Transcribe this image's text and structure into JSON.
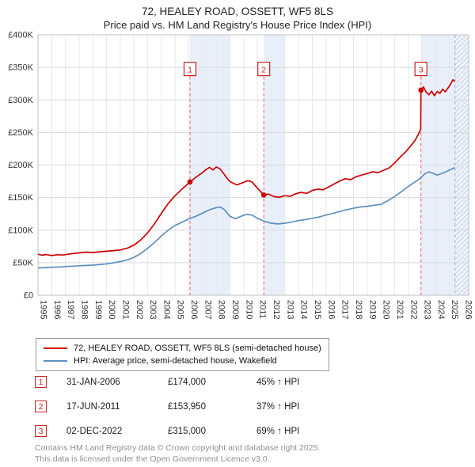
{
  "title": "72, HEALEY ROAD, OSSETT, WF5 8LS",
  "subtitle": "Price paid vs. HM Land Registry's House Price Index (HPI)",
  "colors": {
    "accent_red": "#cc2222",
    "property_line": "#cc0000",
    "hpi_line": "#5f8fc0",
    "band_fill": "#e9effa",
    "sale_dash": "#e06666",
    "grid_major": "#d9d9d9",
    "grid_minor": "#e8e8e8",
    "plot_border": "#c0c0c0",
    "hatch_stroke": "#c7d3e3",
    "hatch_bg": "#f0f4fa",
    "hpi_end_dash": "#8fb2d6"
  },
  "chart_data": {
    "type": "line",
    "title": "Price paid vs. HM Land Registry's House Price Index (HPI)",
    "xlabel": "",
    "ylabel": "",
    "legend_position": "bottom",
    "grid": true,
    "x_domain": [
      1995,
      2026.4
    ],
    "y_domain": [
      0,
      400000
    ],
    "x_ticks": [
      1995,
      1996,
      1997,
      1998,
      1999,
      2000,
      2001,
      2002,
      2003,
      2004,
      2005,
      2006,
      2007,
      2008,
      2009,
      2010,
      2011,
      2012,
      2013,
      2014,
      2015,
      2016,
      2017,
      2018,
      2019,
      2020,
      2021,
      2022,
      2023,
      2024,
      2025,
      2026
    ],
    "y_ticks": [
      {
        "v": 0,
        "label": "£0"
      },
      {
        "v": 50000,
        "label": "£50K"
      },
      {
        "v": 100000,
        "label": "£100K"
      },
      {
        "v": 150000,
        "label": "£150K"
      },
      {
        "v": 200000,
        "label": "£200K"
      },
      {
        "v": 250000,
        "label": "£250K"
      },
      {
        "v": 300000,
        "label": "£300K"
      },
      {
        "v": 350000,
        "label": "£350K"
      },
      {
        "v": 400000,
        "label": "£400K"
      }
    ],
    "label_y": 347000,
    "bands": [
      [
        2006.08,
        2009.0
      ],
      [
        2011.46,
        2013.0
      ],
      [
        2022.92,
        2025.4
      ]
    ],
    "hatch_band": [
      2025.4,
      2026.4
    ],
    "hpi_end_x": 2025.4,
    "series": [
      {
        "name": "72, HEALEY ROAD, OSSETT, WF5 8LS (semi-detached house)",
        "color": "#cc0000",
        "points": [
          [
            1995.0,
            63000
          ],
          [
            1995.3,
            61500
          ],
          [
            1995.6,
            62500
          ],
          [
            1996.0,
            61000
          ],
          [
            1996.4,
            62200
          ],
          [
            1996.8,
            61800
          ],
          [
            1997.2,
            63000
          ],
          [
            1997.6,
            64200
          ],
          [
            1998.0,
            65000
          ],
          [
            1998.5,
            66300
          ],
          [
            1999.0,
            65600
          ],
          [
            1999.5,
            66800
          ],
          [
            2000.0,
            67600
          ],
          [
            2000.5,
            68600
          ],
          [
            2001.0,
            69600
          ],
          [
            2001.5,
            72200
          ],
          [
            2002.0,
            77000
          ],
          [
            2002.5,
            85000
          ],
          [
            2003.0,
            96000
          ],
          [
            2003.5,
            110000
          ],
          [
            2004.0,
            126000
          ],
          [
            2004.5,
            141000
          ],
          [
            2005.0,
            153000
          ],
          [
            2005.5,
            163000
          ],
          [
            2006.08,
            174000
          ],
          [
            2006.5,
            181000
          ],
          [
            2007.0,
            188500
          ],
          [
            2007.25,
            193000
          ],
          [
            2007.5,
            196500
          ],
          [
            2007.75,
            192500
          ],
          [
            2008.0,
            197000
          ],
          [
            2008.25,
            194500
          ],
          [
            2008.5,
            188000
          ],
          [
            2008.75,
            180500
          ],
          [
            2009.0,
            174500
          ],
          [
            2009.5,
            169500
          ],
          [
            2010.0,
            173500
          ],
          [
            2010.3,
            176000
          ],
          [
            2010.6,
            174000
          ],
          [
            2011.0,
            164500
          ],
          [
            2011.46,
            153950
          ],
          [
            2011.8,
            155500
          ],
          [
            2012.2,
            151500
          ],
          [
            2012.6,
            150500
          ],
          [
            2013.0,
            153000
          ],
          [
            2013.4,
            152000
          ],
          [
            2013.8,
            156000
          ],
          [
            2014.2,
            158000
          ],
          [
            2014.6,
            156500
          ],
          [
            2015.0,
            161000
          ],
          [
            2015.4,
            163000
          ],
          [
            2015.8,
            162000
          ],
          [
            2016.2,
            166500
          ],
          [
            2016.6,
            171000
          ],
          [
            2017.0,
            175500
          ],
          [
            2017.4,
            179000
          ],
          [
            2017.8,
            177500
          ],
          [
            2018.2,
            182000
          ],
          [
            2018.6,
            184500
          ],
          [
            2019.0,
            187000
          ],
          [
            2019.4,
            189500
          ],
          [
            2019.8,
            188500
          ],
          [
            2020.2,
            192000
          ],
          [
            2020.6,
            195500
          ],
          [
            2021.0,
            203000
          ],
          [
            2021.4,
            212000
          ],
          [
            2021.8,
            220000
          ],
          [
            2022.2,
            230000
          ],
          [
            2022.5,
            238000
          ],
          [
            2022.75,
            248000
          ],
          [
            2022.9,
            255000
          ],
          [
            2022.92,
            315000
          ],
          [
            2023.1,
            320000
          ],
          [
            2023.3,
            312000
          ],
          [
            2023.5,
            308000
          ],
          [
            2023.7,
            313500
          ],
          [
            2023.9,
            306500
          ],
          [
            2024.1,
            313000
          ],
          [
            2024.3,
            310000
          ],
          [
            2024.5,
            316500
          ],
          [
            2024.7,
            312500
          ],
          [
            2024.9,
            318500
          ],
          [
            2025.1,
            325000
          ],
          [
            2025.25,
            331000
          ],
          [
            2025.4,
            328500
          ]
        ]
      },
      {
        "name": "HPI: Average price, semi-detached house, Wakefield",
        "color": "#5f8fc0",
        "points": [
          [
            1995.0,
            42000
          ],
          [
            1995.5,
            42500
          ],
          [
            1996.0,
            43000
          ],
          [
            1996.5,
            43400
          ],
          [
            1997.0,
            44000
          ],
          [
            1997.5,
            44600
          ],
          [
            1998.0,
            45200
          ],
          [
            1998.5,
            45700
          ],
          [
            1999.0,
            46200
          ],
          [
            1999.5,
            47200
          ],
          [
            2000.0,
            48200
          ],
          [
            2000.5,
            49700
          ],
          [
            2001.0,
            51700
          ],
          [
            2001.5,
            54200
          ],
          [
            2002.0,
            58200
          ],
          [
            2002.5,
            64200
          ],
          [
            2003.0,
            72200
          ],
          [
            2003.5,
            81200
          ],
          [
            2004.0,
            91200
          ],
          [
            2004.5,
            100200
          ],
          [
            2005.0,
            107200
          ],
          [
            2005.5,
            112200
          ],
          [
            2006.0,
            117200
          ],
          [
            2006.5,
            121200
          ],
          [
            2007.0,
            126200
          ],
          [
            2007.5,
            131200
          ],
          [
            2008.0,
            134600
          ],
          [
            2008.3,
            135600
          ],
          [
            2008.6,
            131200
          ],
          [
            2009.0,
            121200
          ],
          [
            2009.4,
            117600
          ],
          [
            2009.8,
            121200
          ],
          [
            2010.2,
            124200
          ],
          [
            2010.6,
            123200
          ],
          [
            2011.0,
            118200
          ],
          [
            2011.5,
            113600
          ],
          [
            2012.0,
            110600
          ],
          [
            2012.5,
            109600
          ],
          [
            2013.0,
            110600
          ],
          [
            2013.5,
            112600
          ],
          [
            2014.0,
            114600
          ],
          [
            2014.5,
            116200
          ],
          [
            2015.0,
            118200
          ],
          [
            2015.5,
            120200
          ],
          [
            2016.0,
            123200
          ],
          [
            2016.5,
            125600
          ],
          [
            2017.0,
            128600
          ],
          [
            2017.5,
            131200
          ],
          [
            2018.0,
            133600
          ],
          [
            2018.5,
            135600
          ],
          [
            2019.0,
            136600
          ],
          [
            2019.5,
            138200
          ],
          [
            2020.0,
            139600
          ],
          [
            2020.5,
            145200
          ],
          [
            2021.0,
            151600
          ],
          [
            2021.5,
            159200
          ],
          [
            2022.0,
            167200
          ],
          [
            2022.5,
            174200
          ],
          [
            2022.9,
            180200
          ],
          [
            2023.2,
            186600
          ],
          [
            2023.5,
            189600
          ],
          [
            2023.8,
            187200
          ],
          [
            2024.1,
            184600
          ],
          [
            2024.4,
            186600
          ],
          [
            2024.7,
            189200
          ],
          [
            2025.0,
            192200
          ],
          [
            2025.2,
            194200
          ],
          [
            2025.4,
            196200
          ]
        ]
      }
    ],
    "sales": [
      {
        "n": "1",
        "x": 2006.08,
        "y": 174000,
        "date": "31-JAN-2006",
        "price": "£174,000",
        "hpi": "45% ↑ HPI"
      },
      {
        "n": "2",
        "x": 2011.46,
        "y": 153950,
        "date": "17-JUN-2011",
        "price": "£153,950",
        "hpi": "37% ↑ HPI"
      },
      {
        "n": "3",
        "x": 2022.92,
        "y": 315000,
        "date": "02-DEC-2022",
        "price": "£315,000",
        "hpi": "69% ↑ HPI"
      }
    ]
  },
  "footer": {
    "line1": "Contains HM Land Registry data © Crown copyright and database right 2025.",
    "line2": "This data is licensed under the Open Government Licence v3.0."
  }
}
